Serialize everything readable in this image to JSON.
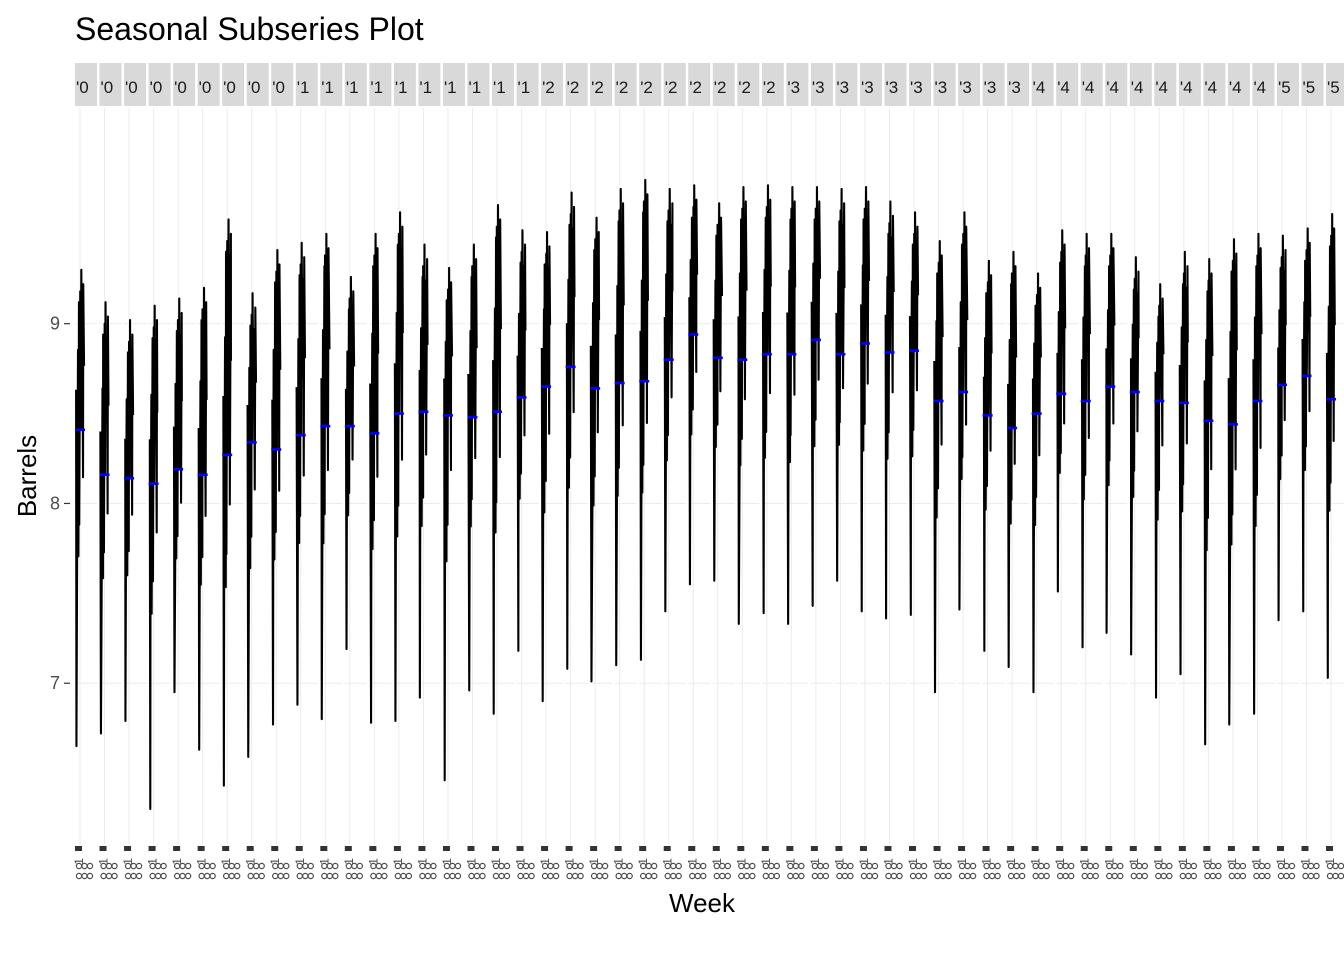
{
  "chart_data": {
    "type": "line",
    "title": "Seasonal Subseries Plot",
    "xlabel": "Week",
    "ylabel": "Barrels",
    "yticks": [
      7,
      8,
      9
    ],
    "ylim": [
      6.1,
      10.2
    ],
    "grid": true,
    "legend": "none",
    "strip_labels": [
      "'0",
      "'0",
      "'0",
      "'0",
      "'0",
      "'0",
      "'0",
      "'0",
      "'0",
      "'1",
      "'1",
      "'1",
      "'1",
      "'1",
      "'1",
      "'1",
      "'1",
      "'1",
      "'1",
      "'2",
      "'2",
      "'2",
      "'2",
      "'2",
      "'2",
      "'2",
      "'2",
      "'2",
      "'2",
      "'3",
      "'3",
      "'3",
      "'3",
      "'3",
      "'3",
      "'3",
      "'3",
      "'3",
      "'3",
      "'4",
      "'4",
      "'4",
      "'4",
      "'4",
      "'4",
      "'4",
      "'4",
      "'4",
      "'4",
      "'5",
      "'5",
      "'5"
    ],
    "colors": {
      "series": "#000000",
      "mean": "#0000ff",
      "strip": "#d9d9d9",
      "grid": "#ebebeb"
    },
    "panels": [
      {
        "mean": 8.41,
        "min": 6.65,
        "max": 9.3
      },
      {
        "mean": 8.16,
        "min": 6.72,
        "max": 9.12
      },
      {
        "mean": 8.14,
        "min": 6.79,
        "max": 9.02
      },
      {
        "mean": 8.11,
        "min": 6.3,
        "max": 9.1
      },
      {
        "mean": 8.19,
        "min": 6.95,
        "max": 9.14
      },
      {
        "mean": 8.16,
        "min": 6.63,
        "max": 9.2
      },
      {
        "mean": 8.27,
        "min": 6.43,
        "max": 9.58
      },
      {
        "mean": 8.34,
        "min": 6.59,
        "max": 9.17
      },
      {
        "mean": 8.3,
        "min": 6.77,
        "max": 9.41
      },
      {
        "mean": 8.38,
        "min": 6.88,
        "max": 9.45
      },
      {
        "mean": 8.43,
        "min": 6.8,
        "max": 9.5
      },
      {
        "mean": 8.43,
        "min": 7.19,
        "max": 9.26
      },
      {
        "mean": 8.39,
        "min": 6.78,
        "max": 9.5
      },
      {
        "mean": 8.5,
        "min": 6.79,
        "max": 9.62
      },
      {
        "mean": 8.51,
        "min": 6.92,
        "max": 9.44
      },
      {
        "mean": 8.49,
        "min": 6.46,
        "max": 9.31
      },
      {
        "mean": 8.48,
        "min": 6.96,
        "max": 9.44
      },
      {
        "mean": 8.51,
        "min": 6.83,
        "max": 9.66
      },
      {
        "mean": 8.59,
        "min": 7.18,
        "max": 9.52
      },
      {
        "mean": 8.65,
        "min": 6.9,
        "max": 9.51
      },
      {
        "mean": 8.76,
        "min": 7.08,
        "max": 9.73
      },
      {
        "mean": 8.64,
        "min": 7.01,
        "max": 9.59
      },
      {
        "mean": 8.67,
        "min": 7.1,
        "max": 9.75
      },
      {
        "mean": 8.68,
        "min": 7.13,
        "max": 9.8
      },
      {
        "mean": 8.8,
        "min": 7.4,
        "max": 9.75
      },
      {
        "mean": 8.94,
        "min": 7.55,
        "max": 9.77
      },
      {
        "mean": 8.81,
        "min": 7.57,
        "max": 9.67
      },
      {
        "mean": 8.8,
        "min": 7.33,
        "max": 9.76
      },
      {
        "mean": 8.83,
        "min": 7.39,
        "max": 9.77
      },
      {
        "mean": 8.83,
        "min": 7.33,
        "max": 9.76
      },
      {
        "mean": 8.91,
        "min": 7.43,
        "max": 9.76
      },
      {
        "mean": 8.83,
        "min": 7.57,
        "max": 9.75
      },
      {
        "mean": 8.89,
        "min": 7.4,
        "max": 9.76
      },
      {
        "mean": 8.84,
        "min": 7.36,
        "max": 9.68
      },
      {
        "mean": 8.85,
        "min": 7.38,
        "max": 9.62
      },
      {
        "mean": 8.57,
        "min": 6.95,
        "max": 9.46
      },
      {
        "mean": 8.62,
        "min": 7.41,
        "max": 9.62
      },
      {
        "mean": 8.49,
        "min": 7.18,
        "max": 9.35
      },
      {
        "mean": 8.42,
        "min": 7.09,
        "max": 9.4
      },
      {
        "mean": 8.5,
        "min": 6.95,
        "max": 9.28
      },
      {
        "mean": 8.61,
        "min": 7.51,
        "max": 9.52
      },
      {
        "mean": 8.57,
        "min": 7.2,
        "max": 9.5
      },
      {
        "mean": 8.65,
        "min": 7.28,
        "max": 9.5
      },
      {
        "mean": 8.62,
        "min": 7.16,
        "max": 9.37
      },
      {
        "mean": 8.57,
        "min": 6.92,
        "max": 9.22
      },
      {
        "mean": 8.56,
        "min": 7.05,
        "max": 9.4
      },
      {
        "mean": 8.46,
        "min": 6.66,
        "max": 9.36
      },
      {
        "mean": 8.44,
        "min": 6.77,
        "max": 9.47
      },
      {
        "mean": 8.57,
        "min": 6.83,
        "max": 9.5
      },
      {
        "mean": 8.66,
        "min": 7.35,
        "max": 9.49
      },
      {
        "mean": 8.71,
        "min": 7.4,
        "max": 9.53
      },
      {
        "mean": 8.58,
        "min": 7.03,
        "max": 9.61
      }
    ]
  }
}
